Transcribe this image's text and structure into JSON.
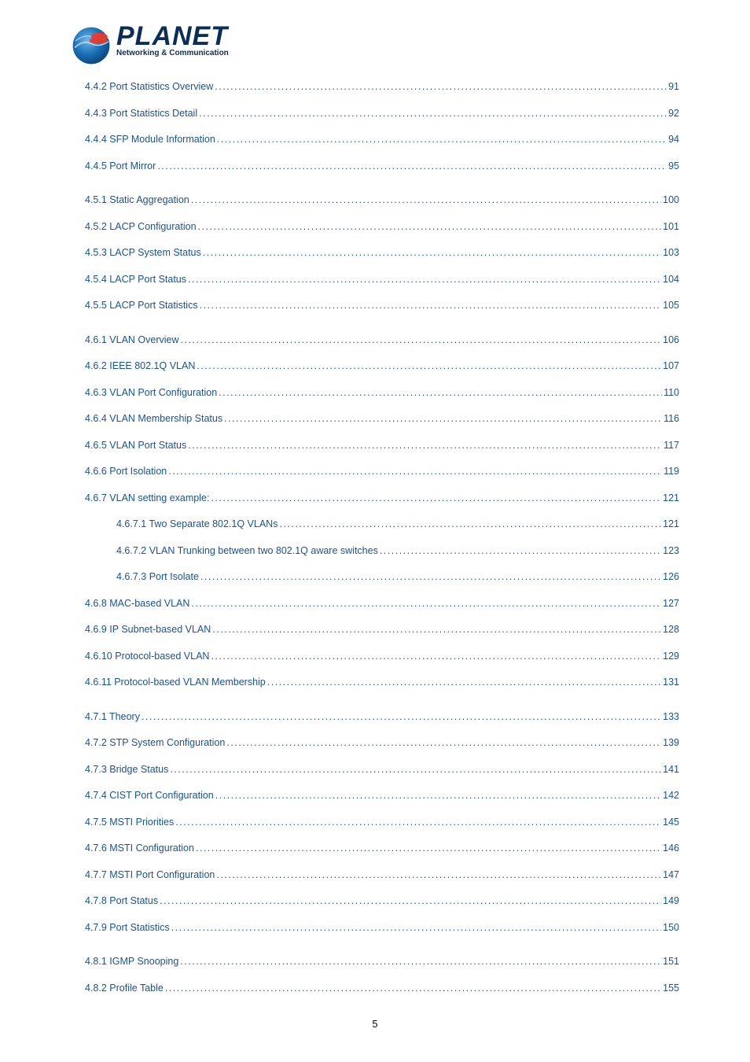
{
  "brand": {
    "name": "PLANET",
    "tag": "Networking & Communication"
  },
  "link_color": "#1a5296",
  "text_color": "#000000",
  "font_size": 12.5,
  "page_number": "5",
  "groups": [
    {
      "items": [
        {
          "label": "4.4.2 Port Statistics Overview",
          "page": "91",
          "indent": 1
        },
        {
          "label": "4.4.3 Port Statistics Detail",
          "page": "92",
          "indent": 1
        },
        {
          "label": "4.4.4 SFP Module Information",
          "page": "94",
          "indent": 1
        },
        {
          "label": "4.4.5 Port Mirror",
          "page": "95",
          "indent": 1
        }
      ]
    },
    {
      "items": [
        {
          "label": "4.5.1 Static Aggregation",
          "page": "100",
          "indent": 1
        },
        {
          "label": "4.5.2 LACP Configuration",
          "page": "101",
          "indent": 1
        },
        {
          "label": "4.5.3 LACP System Status",
          "page": "103",
          "indent": 1
        },
        {
          "label": "4.5.4 LACP Port Status",
          "page": "104",
          "indent": 1
        },
        {
          "label": "4.5.5 LACP Port Statistics",
          "page": "105",
          "indent": 1
        }
      ]
    },
    {
      "items": [
        {
          "label": "4.6.1 VLAN Overview",
          "page": "106",
          "indent": 1
        },
        {
          "label": "4.6.2 IEEE 802.1Q VLAN",
          "page": "107",
          "indent": 1
        },
        {
          "label": "4.6.3 VLAN Port Configuration",
          "page": "110",
          "indent": 1
        },
        {
          "label": "4.6.4 VLAN Membership Status",
          "page": "116",
          "indent": 1
        },
        {
          "label": "4.6.5 VLAN Port Status",
          "page": "117",
          "indent": 1
        },
        {
          "label": "4.6.6 Port Isolation",
          "page": "119",
          "indent": 1
        },
        {
          "label": "4.6.7 VLAN setting example:",
          "page": "121",
          "indent": 1
        },
        {
          "label": "4.6.7.1 Two Separate 802.1Q VLANs",
          "page": "121",
          "indent": 2
        },
        {
          "label": "4.6.7.2 VLAN Trunking between two 802.1Q aware switches",
          "page": "123",
          "indent": 2
        },
        {
          "label": "4.6.7.3 Port Isolate",
          "page": "126",
          "indent": 2
        },
        {
          "label": "4.6.8 MAC-based VLAN",
          "page": "127",
          "indent": 1
        },
        {
          "label": "4.6.9 IP Subnet-based VLAN",
          "page": "128",
          "indent": 1
        },
        {
          "label": "4.6.10 Protocol-based VLAN",
          "page": "129",
          "indent": 1
        },
        {
          "label": "4.6.11 Protocol-based VLAN Membership",
          "page": "131",
          "indent": 1
        }
      ]
    },
    {
      "items": [
        {
          "label": "4.7.1 Theory",
          "page": "133",
          "indent": 1
        },
        {
          "label": "4.7.2 STP System Configuration",
          "page": "139",
          "indent": 1
        },
        {
          "label": "4.7.3 Bridge Status",
          "page": "141",
          "indent": 1
        },
        {
          "label": "4.7.4 CIST Port Configuration",
          "page": "142",
          "indent": 1
        },
        {
          "label": "4.7.5 MSTI Priorities",
          "page": "145",
          "indent": 1
        },
        {
          "label": "4.7.6 MSTI Configuration",
          "page": "146",
          "indent": 1
        },
        {
          "label": "4.7.7 MSTI Port Configuration",
          "page": "147",
          "indent": 1
        },
        {
          "label": "4.7.8 Port Status",
          "page": "149",
          "indent": 1
        },
        {
          "label": "4.7.9 Port Statistics",
          "page": "150",
          "indent": 1
        }
      ]
    },
    {
      "items": [
        {
          "label": "4.8.1 IGMP Snooping",
          "page": "151",
          "indent": 1
        },
        {
          "label": "4.8.2 Profile Table",
          "page": "155",
          "indent": 1
        }
      ]
    }
  ]
}
